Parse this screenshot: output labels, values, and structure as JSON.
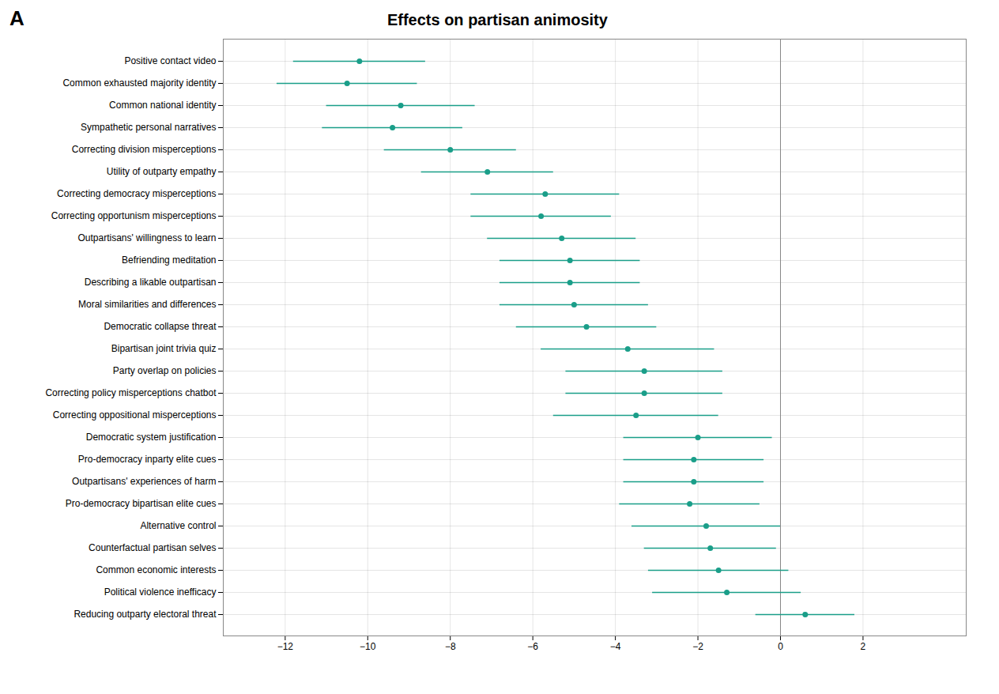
{
  "chart_data": {
    "type": "forest",
    "orientation": "horizontal",
    "title": "Effects on partisan animosity",
    "annotations": [
      "A"
    ],
    "categories": [
      "Positive contact video",
      "Common exhausted majority identity",
      "Common national identity",
      "Sympathetic personal narratives",
      "Correcting division misperceptions",
      "Utility of outparty empathy",
      "Correcting democracy misperceptions",
      "Correcting opportunism misperceptions",
      "Outpartisans' willingness to learn",
      "Befriending meditation",
      "Describing a likable outpartisan",
      "Moral similarities and differences",
      "Democratic collapse threat",
      "Bipartisan joint trivia quiz",
      "Party overlap on policies",
      "Correcting policy misperceptions chatbot",
      "Correcting oppositional misperceptions",
      "Democratic system justification",
      "Pro-democracy inparty elite cues",
      "Outpartisans' experiences of harm",
      "Pro-democracy bipartisan elite cues",
      "Alternative control",
      "Counterfactual partisan selves",
      "Common economic interests",
      "Political violence inefficacy",
      "Reducing outparty electoral threat"
    ],
    "values": [
      -10.2,
      -10.5,
      -9.2,
      -9.4,
      -8.0,
      -7.1,
      -5.7,
      -5.8,
      -5.3,
      -5.1,
      -5.1,
      -5.0,
      -4.7,
      -3.7,
      -3.3,
      -3.3,
      -3.5,
      -2.0,
      -2.1,
      -2.1,
      -2.2,
      -1.8,
      -1.7,
      -1.5,
      -1.3,
      0.6
    ],
    "ci_lower": [
      -11.8,
      -12.2,
      -11.0,
      -11.1,
      -9.6,
      -8.7,
      -7.5,
      -7.5,
      -7.1,
      -6.8,
      -6.8,
      -6.8,
      -6.4,
      -5.8,
      -5.2,
      -5.2,
      -5.5,
      -3.8,
      -3.8,
      -3.8,
      -3.9,
      -3.6,
      -3.3,
      -3.2,
      -3.1,
      -0.6
    ],
    "ci_upper": [
      -8.6,
      -8.8,
      -7.4,
      -7.7,
      -6.4,
      -5.5,
      -3.9,
      -4.1,
      -3.5,
      -3.4,
      -3.4,
      -3.2,
      -3.0,
      -1.6,
      -1.4,
      -1.4,
      -1.5,
      -0.2,
      -0.4,
      -0.4,
      -0.5,
      -0.0,
      -0.1,
      0.2,
      0.5,
      1.8
    ],
    "reference_x": 0,
    "color": "#1a9e89",
    "xlim": [
      -13.5,
      4.5
    ],
    "xticks": [
      -12,
      -10,
      -8,
      -6,
      -4,
      -2,
      0,
      2
    ],
    "grid": true
  }
}
